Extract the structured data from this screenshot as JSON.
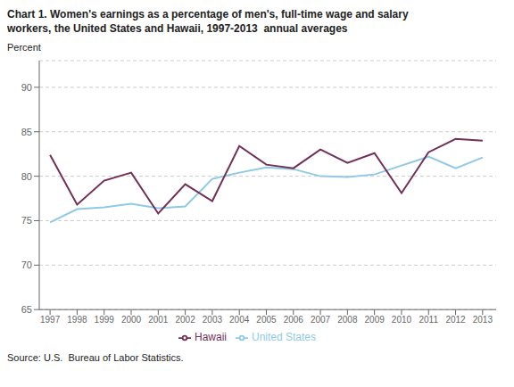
{
  "chart_data": {
    "type": "line",
    "title": "Chart 1. Women's earnings as a percentage of men's, full-time wage and salary\nworkers, the United States and Hawaii, 1997-2013  annual averages",
    "y_label": "Percent",
    "annotations": [
      "Source: U.S.  Bureau of Labor Statistics."
    ],
    "x": [
      1997,
      1998,
      1999,
      2000,
      2001,
      2002,
      2003,
      2004,
      2005,
      2006,
      2007,
      2008,
      2009,
      2010,
      2011,
      2012,
      2013
    ],
    "series": [
      {
        "name": "United States",
        "color": "#8ECAE6",
        "values": [
          74.8,
          76.3,
          76.5,
          76.9,
          76.4,
          76.6,
          79.7,
          80.4,
          81.0,
          80.8,
          80.0,
          79.9,
          80.2,
          81.2,
          82.2,
          80.9,
          82.1
        ]
      },
      {
        "name": "Hawaii",
        "color": "#722F57",
        "values": [
          82.4,
          76.8,
          79.5,
          80.4,
          75.8,
          79.1,
          77.2,
          83.4,
          81.3,
          80.9,
          83.0,
          81.5,
          82.6,
          78.1,
          82.7,
          84.2,
          84.0
        ]
      }
    ],
    "xlim": [
      1996.6,
      2013.5
    ],
    "xticks": [
      1997,
      1998,
      1999,
      2000,
      2001,
      2002,
      2003,
      2004,
      2005,
      2006,
      2007,
      2008,
      2009,
      2010,
      2011,
      2012,
      2013
    ],
    "ylim": [
      65,
      93
    ],
    "yticks": [
      65,
      70,
      75,
      80,
      85,
      90
    ],
    "grid": true,
    "legend": "bottom"
  }
}
